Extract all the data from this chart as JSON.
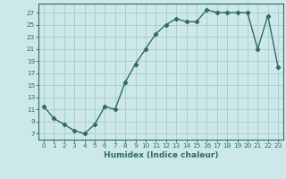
{
  "x": [
    0,
    1,
    2,
    3,
    4,
    5,
    6,
    7,
    8,
    9,
    10,
    11,
    12,
    13,
    14,
    15,
    16,
    17,
    18,
    19,
    20,
    21,
    22,
    23
  ],
  "y": [
    11.5,
    9.5,
    8.5,
    7.5,
    7.0,
    8.5,
    11.5,
    11.0,
    15.5,
    18.5,
    21.0,
    23.5,
    25.0,
    26.0,
    25.5,
    25.5,
    27.5,
    27.0,
    27.0,
    27.0,
    27.0,
    21.0,
    26.5,
    18.0
  ],
  "line_color": "#2d6e5e",
  "bg_color": "#cce8e8",
  "grid_color": "#aacccc",
  "xlabel": "Humidex (Indice chaleur)",
  "ylabel_ticks": [
    7,
    9,
    11,
    13,
    15,
    17,
    19,
    21,
    23,
    25,
    27
  ],
  "ylim": [
    6.0,
    28.5
  ],
  "xlim": [
    -0.5,
    23.5
  ],
  "marker": "D",
  "marker_size": 2.2,
  "line_width": 1.0,
  "tick_fontsize": 5.2,
  "xlabel_fontsize": 6.5
}
